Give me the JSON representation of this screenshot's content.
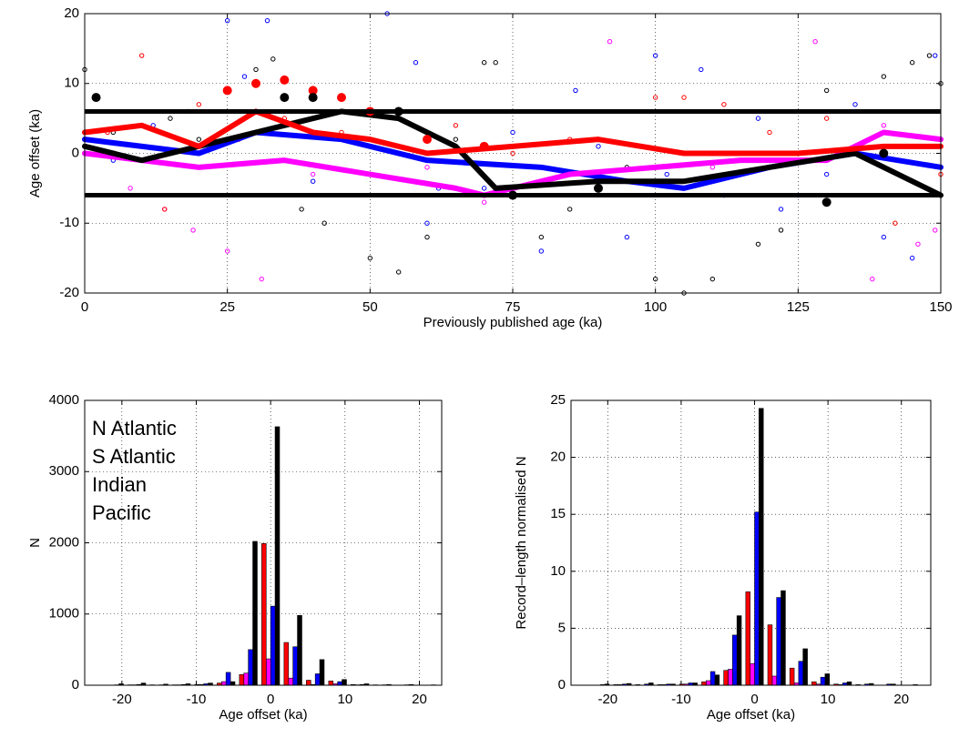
{
  "chart_data": [
    {
      "type": "scatter",
      "xlabel": "Previously published age (ka)",
      "ylabel": "Age offset (ka)",
      "xlim": [
        0,
        150
      ],
      "ylim": [
        -20,
        20
      ],
      "xticks": [
        0,
        25,
        50,
        75,
        100,
        125,
        150
      ],
      "yticks": [
        -20,
        -10,
        0,
        10,
        20
      ],
      "grid": true,
      "hlines": [
        6,
        -6
      ],
      "hline_color": "#000000",
      "series": [
        {
          "color": "#000000",
          "marker": "open",
          "x": [
            0,
            2,
            5,
            10,
            15,
            20,
            30,
            33,
            38,
            42,
            45,
            50,
            55,
            60,
            65,
            70,
            72,
            80,
            85,
            95,
            100,
            105,
            110,
            118,
            122,
            130,
            140,
            145,
            148,
            150
          ],
          "values": [
            12,
            8,
            3,
            -1,
            5,
            2,
            12,
            13.5,
            -8,
            -10,
            6,
            -15,
            -17,
            -12,
            2,
            13,
            13,
            -12,
            -8,
            -2,
            -18,
            -20,
            -18,
            -13,
            -11,
            9,
            11,
            13,
            14,
            10
          ]
        },
        {
          "color": "#0000ff",
          "marker": "open",
          "x": [
            5,
            12,
            18,
            25,
            28,
            32,
            35,
            40,
            53,
            58,
            60,
            62,
            70,
            75,
            80,
            86,
            90,
            95,
            100,
            102,
            108,
            112,
            118,
            122,
            125,
            130,
            135,
            140,
            145,
            149
          ],
          "values": [
            -1,
            4,
            6,
            19,
            11,
            19,
            8,
            -4,
            20,
            13,
            -10,
            -5,
            -5,
            3,
            -14,
            9,
            1,
            -12,
            14,
            -3,
            12,
            -6,
            5,
            -8,
            -6,
            -3,
            7,
            -12,
            -15,
            14
          ]
        },
        {
          "color": "#ff00ff",
          "marker": "open",
          "x": [
            8,
            14,
            19,
            25,
            31,
            40,
            60,
            70,
            80,
            92,
            110,
            128,
            138,
            140,
            146,
            149
          ],
          "values": [
            -5,
            -8,
            -11,
            -14,
            -18,
            -3,
            -2,
            -7,
            -4,
            16,
            -2,
            16,
            -18,
            4,
            -13,
            -11
          ]
        },
        {
          "color": "#ff0000",
          "marker": "open",
          "x": [
            4,
            10,
            14,
            20,
            27,
            35,
            45,
            55,
            65,
            75,
            85,
            100,
            105,
            112,
            120,
            130,
            142,
            150
          ],
          "values": [
            3,
            14,
            -8,
            7,
            2,
            5,
            3,
            1,
            4,
            0,
            2,
            8,
            8,
            7,
            3,
            5,
            -10,
            -3
          ]
        },
        {
          "color": "#0000ff",
          "marker": "line",
          "x": [
            0,
            20,
            30,
            45,
            60,
            80,
            95,
            105,
            120,
            135,
            150
          ],
          "values": [
            2,
            0,
            3,
            2,
            -1,
            -2,
            -4,
            -5,
            -2,
            0,
            -2
          ]
        },
        {
          "color": "#ff00ff",
          "marker": "line",
          "x": [
            0,
            10,
            20,
            35,
            50,
            65,
            70,
            85,
            100,
            115,
            130,
            140,
            150
          ],
          "values": [
            0,
            -1,
            -2,
            -1,
            -3,
            -5,
            -6,
            -3,
            -2,
            -1,
            -1,
            3,
            2
          ]
        },
        {
          "color": "#000000",
          "marker": "line",
          "x": [
            0,
            10,
            20,
            35,
            45,
            55,
            65,
            72,
            90,
            105,
            120,
            135,
            150
          ],
          "values": [
            1,
            -1,
            1,
            4,
            6,
            5,
            1,
            -5,
            -4,
            -4,
            -2,
            0,
            -6
          ]
        },
        {
          "color": "#ff0000",
          "marker": "line",
          "x": [
            0,
            10,
            20,
            30,
            40,
            50,
            60,
            75,
            90,
            105,
            125,
            140,
            150
          ],
          "values": [
            3,
            4,
            1,
            6,
            3,
            2,
            0,
            1,
            2,
            0,
            0,
            1,
            1
          ]
        },
        {
          "color": "#ff0000",
          "marker": "filled",
          "x": [
            25,
            30,
            35,
            40,
            45,
            50,
            60,
            70
          ],
          "values": [
            9,
            10,
            10.5,
            9,
            8,
            6,
            2,
            1
          ]
        },
        {
          "color": "#000000",
          "marker": "filled",
          "x": [
            2,
            35,
            40,
            55,
            75,
            90,
            130,
            140
          ],
          "values": [
            8,
            8,
            8,
            6,
            -6,
            -5,
            -7,
            0
          ]
        }
      ]
    },
    {
      "type": "bar",
      "xlabel": "Age offset (ka)",
      "ylabel": "N",
      "xlim": [
        -25,
        23
      ],
      "ylim": [
        0,
        4000
      ],
      "xticks": [
        -20,
        -10,
        0,
        10,
        20
      ],
      "yticks": [
        0,
        1000,
        2000,
        3000,
        4000
      ],
      "grid": true,
      "legend": "upper left",
      "x": [
        -21,
        -18,
        -15,
        -12,
        -9,
        -6,
        -3,
        0,
        3,
        6,
        9,
        12,
        15,
        18,
        21
      ],
      "series": [
        {
          "name": "N Atlantic",
          "color": "#000000",
          "values": [
            20,
            30,
            15,
            20,
            30,
            50,
            2020,
            3630,
            980,
            360,
            80,
            20,
            10,
            10,
            5
          ]
        },
        {
          "name": "S Atlantic",
          "color": "#0000ff",
          "values": [
            5,
            10,
            5,
            10,
            20,
            180,
            500,
            1110,
            540,
            160,
            50,
            10,
            5,
            5,
            0
          ]
        },
        {
          "name": "Indian",
          "color": "#ff00ff",
          "values": [
            0,
            5,
            0,
            5,
            10,
            50,
            170,
            370,
            100,
            10,
            20,
            5,
            0,
            0,
            0
          ]
        },
        {
          "name": "Pacific",
          "color": "#ff0000",
          "values": [
            0,
            5,
            5,
            5,
            10,
            30,
            150,
            1990,
            600,
            70,
            60,
            10,
            5,
            0,
            0
          ]
        }
      ]
    },
    {
      "type": "bar",
      "xlabel": "Age offset (ka)",
      "ylabel": "Record–length normalised N",
      "xlim": [
        -25,
        24
      ],
      "ylim": [
        0,
        25
      ],
      "xticks": [
        -20,
        -10,
        0,
        10,
        20
      ],
      "yticks": [
        0,
        5,
        10,
        15,
        20,
        25
      ],
      "grid": true,
      "x": [
        -21,
        -18,
        -15,
        -12,
        -9,
        -6,
        -3,
        0,
        3,
        6,
        9,
        12,
        15,
        18,
        21
      ],
      "series": [
        {
          "color": "#000000",
          "values": [
            0.1,
            0.15,
            0.2,
            0.1,
            0.2,
            0.9,
            6.1,
            24.3,
            8.3,
            3.2,
            1.0,
            0.3,
            0.15,
            0.1,
            0.05
          ]
        },
        {
          "color": "#0000ff",
          "values": [
            0.05,
            0.1,
            0.1,
            0.1,
            0.2,
            1.2,
            4.4,
            15.2,
            7.7,
            2.1,
            0.7,
            0.2,
            0.1,
            0.1,
            0
          ]
        },
        {
          "color": "#ff00ff",
          "values": [
            0,
            0.05,
            0,
            0.05,
            0.1,
            0.4,
            1.4,
            1.9,
            0.8,
            0.2,
            0.1,
            0.05,
            0,
            0,
            0
          ]
        },
        {
          "color": "#ff0000",
          "values": [
            0,
            0.05,
            0.05,
            0.05,
            0.1,
            0.3,
            1.3,
            8.2,
            5.3,
            1.5,
            0.3,
            0.1,
            0.05,
            0,
            0
          ]
        }
      ]
    }
  ]
}
